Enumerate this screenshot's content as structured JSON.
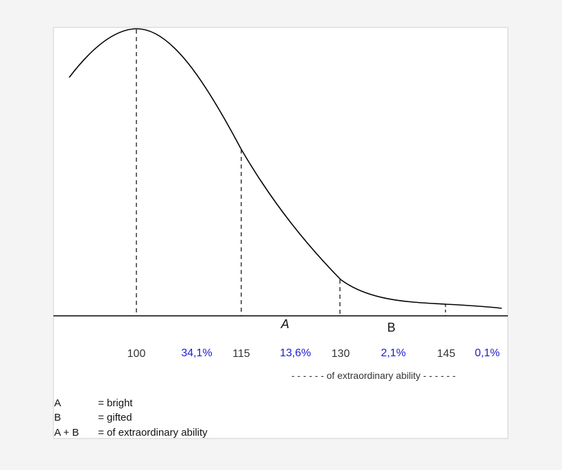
{
  "chart_data": {
    "type": "line",
    "x_ticks": [
      "100",
      "115",
      "130",
      "145"
    ],
    "percentages": [
      "34,1%",
      "13,6%",
      "2,1%",
      "0,1%"
    ],
    "region_labels": [
      "A",
      "B"
    ],
    "extraordinary_label": "- - - - - - of extraordinary ability - - - - - -",
    "legend": [
      {
        "key": "A",
        "desc": "= bright"
      },
      {
        "key": "B",
        "desc": "= gifted"
      },
      {
        "key": "A + B",
        "desc": "= of extraordinary ability"
      }
    ],
    "colors": {
      "percent": "#1a1ad0",
      "text": "#222222",
      "panel": "#ffffff",
      "line": "#000000"
    }
  }
}
